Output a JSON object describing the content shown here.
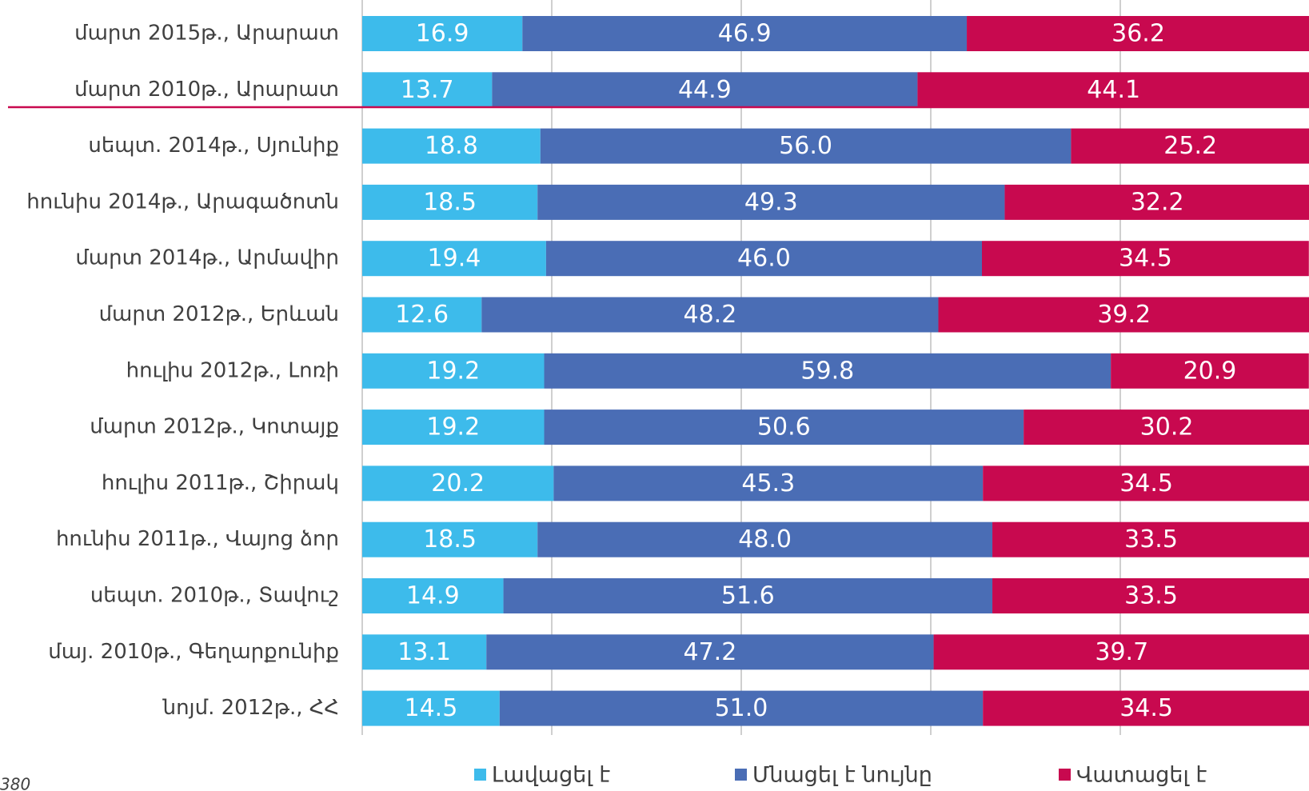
{
  "chart_data": {
    "type": "stacked-bar-horizontal",
    "categories": [
      "մարտ 2015թ., Արարատ",
      "մարտ 2010թ., Արարատ",
      "սեպտ. 2014թ., Սյունիք",
      "հունիս 2014թ., Արագածոտն",
      "մարտ 2014թ., Արմավիր",
      "մարտ 2012թ., Երևան",
      "հուլիս 2012թ.,  Լոռի",
      "մարտ 2012թ., Կոտայք",
      "հուլիս 2011թ., Շիրակ",
      "հունիս 2011թ., Վայոց ձոր",
      "սեպտ. 2010թ., Տավուշ",
      "մայ. 2010թ., Գեղարքունիք",
      "նոյմ. 2012թ., ՀՀ"
    ],
    "series": [
      {
        "name": "Լավացել է",
        "color": "#3dbbeb",
        "values": [
          16.9,
          13.7,
          18.8,
          18.5,
          19.4,
          12.6,
          19.2,
          19.2,
          20.2,
          18.5,
          14.9,
          13.1,
          14.5
        ]
      },
      {
        "name": "Մնացել է նույնը",
        "color": "#4a6db5",
        "values": [
          46.9,
          44.9,
          56,
          49.3,
          46,
          48.2,
          59.8,
          50.6,
          45.3,
          48,
          51.6,
          47.2,
          51
        ],
        "value_labels": [
          "46.9",
          "44.9",
          "56.0",
          "49.3",
          "46.0",
          "48.2",
          "59.8",
          "50.6",
          "45.3",
          "48.0",
          "51.6",
          "47.2",
          "51.0"
        ]
      },
      {
        "name": "Վատացել է",
        "color": "#c8094f",
        "values": [
          36.2,
          44.1,
          25.2,
          32.2,
          34.5,
          39.2,
          20.9,
          30.2,
          34.5,
          33.5,
          33.5,
          39.7,
          34.5
        ]
      }
    ],
    "xlim": [
      0,
      100
    ],
    "xticks": [
      0,
      20,
      40,
      60,
      80,
      100
    ],
    "grid": true,
    "legend": "bottom",
    "footnote": "380"
  }
}
